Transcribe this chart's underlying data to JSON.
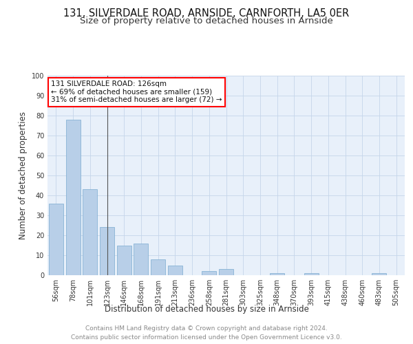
{
  "title1": "131, SILVERDALE ROAD, ARNSIDE, CARNFORTH, LA5 0ER",
  "title2": "Size of property relative to detached houses in Arnside",
  "xlabel": "Distribution of detached houses by size in Arnside",
  "ylabel": "Number of detached properties",
  "bar_color": "#b8cfe8",
  "bar_edge_color": "#7aaad0",
  "background_color": "#e8f0fa",
  "annotation_text": "131 SILVERDALE ROAD: 126sqm\n← 69% of detached houses are smaller (159)\n31% of semi-detached houses are larger (72) →",
  "categories": [
    "56sqm",
    "78sqm",
    "101sqm",
    "123sqm",
    "146sqm",
    "168sqm",
    "191sqm",
    "213sqm",
    "236sqm",
    "258sqm",
    "281sqm",
    "303sqm",
    "325sqm",
    "348sqm",
    "370sqm",
    "393sqm",
    "415sqm",
    "438sqm",
    "460sqm",
    "483sqm",
    "505sqm"
  ],
  "values": [
    36,
    78,
    43,
    24,
    15,
    16,
    8,
    5,
    0,
    2,
    3,
    0,
    0,
    1,
    0,
    1,
    0,
    0,
    0,
    1,
    0
  ],
  "vline_index": 3,
  "ylim": [
    0,
    100
  ],
  "yticks": [
    0,
    10,
    20,
    30,
    40,
    50,
    60,
    70,
    80,
    90,
    100
  ],
  "footer": "Contains HM Land Registry data © Crown copyright and database right 2024.\nContains public sector information licensed under the Open Government Licence v3.0.",
  "grid_color": "#c5d5ea",
  "title_fontsize": 10.5,
  "subtitle_fontsize": 9.5,
  "label_fontsize": 8.5,
  "tick_fontsize": 7,
  "footer_fontsize": 6.5,
  "annotation_fontsize": 7.5
}
